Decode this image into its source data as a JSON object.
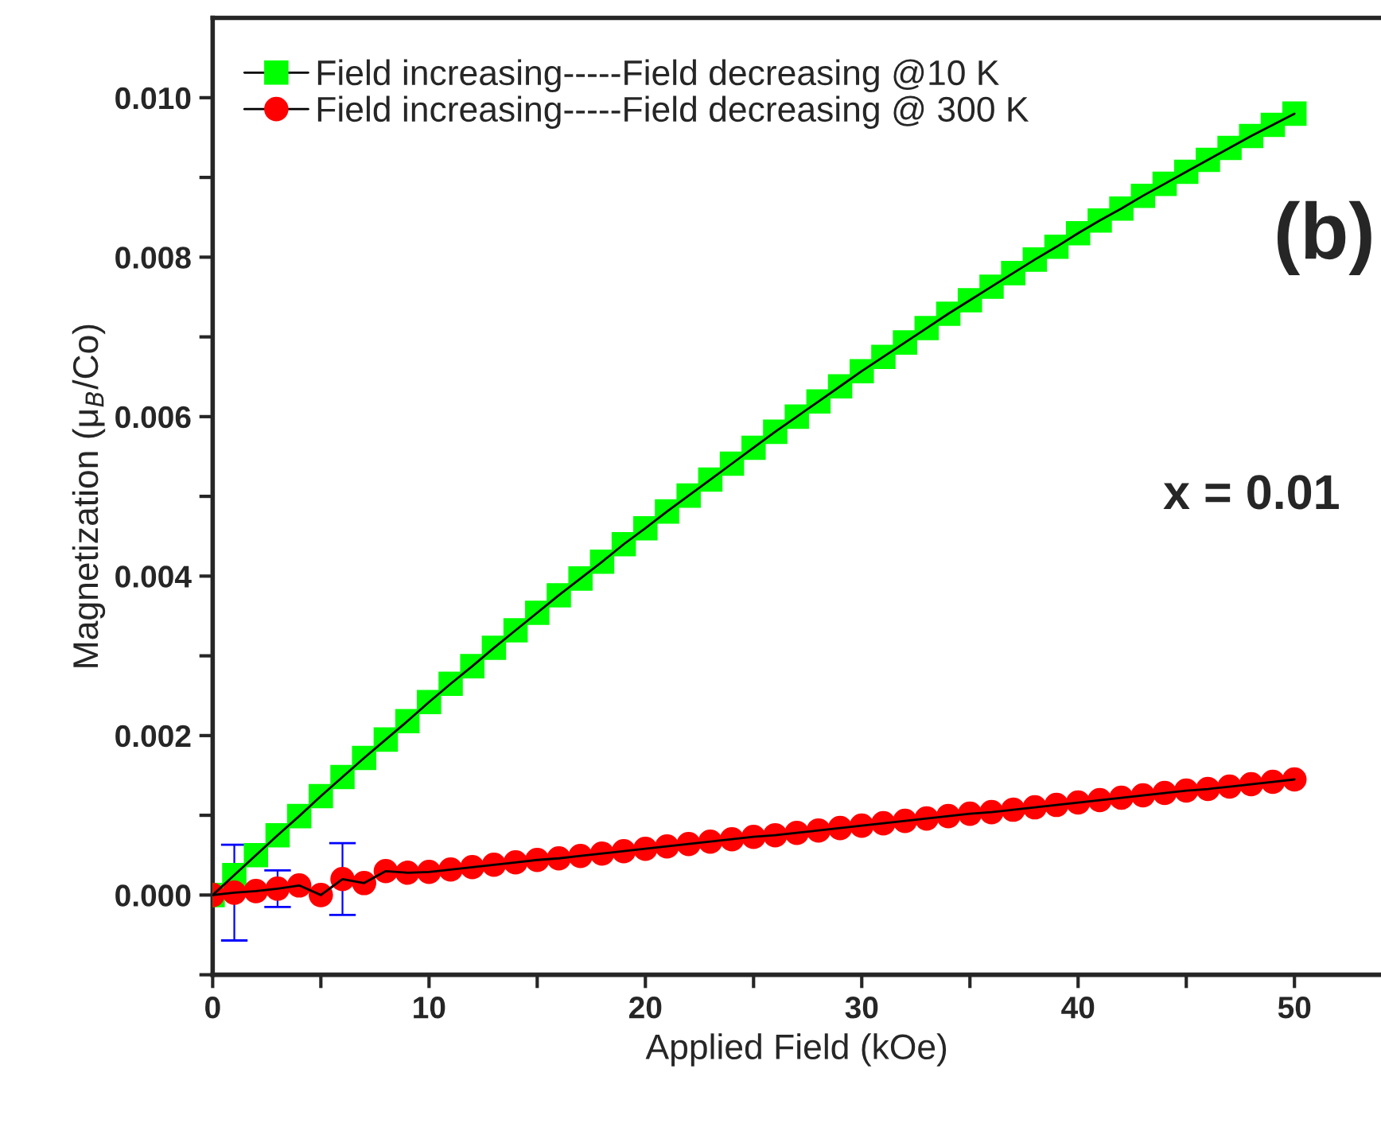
{
  "chart_data": {
    "type": "line",
    "xlabel": "Applied Field (kOe)",
    "ylabel": "Magnetization (μ$_{B}$/Co)",
    "annotations": [
      "(b)",
      "x = 0.01"
    ],
    "xlim": [
      0,
      54
    ],
    "ylim": [
      -0.001,
      0.011
    ],
    "xticks": [
      0,
      {
        "value": 5,
        "label": null
      },
      10,
      {
        "value": 15,
        "label": null
      },
      20,
      {
        "value": 25,
        "label": null
      },
      30,
      {
        "value": 35,
        "label": null
      },
      40,
      {
        "value": 45,
        "label": null
      },
      50
    ],
    "yticks": [
      {
        "value": -0.001,
        "label": null
      },
      {
        "value": 0,
        "label": "0.000"
      },
      {
        "value": 0.001,
        "label": null
      },
      {
        "value": 0.002,
        "label": "0.002"
      },
      {
        "value": 0.003,
        "label": null
      },
      {
        "value": 0.004,
        "label": "0.004"
      },
      {
        "value": 0.005,
        "label": null
      },
      {
        "value": 0.006,
        "label": "0.006"
      },
      {
        "value": 0.007,
        "label": null
      },
      {
        "value": 0.008,
        "label": "0.008"
      },
      {
        "value": 0.009,
        "label": null
      },
      {
        "value": 0.01,
        "label": "0.010"
      }
    ],
    "legend": "top left",
    "grid": false,
    "x": [
      0,
      1,
      2,
      3,
      4,
      5,
      6,
      7,
      8,
      9,
      10,
      11,
      12,
      13,
      14,
      15,
      16,
      17,
      18,
      19,
      20,
      21,
      22,
      23,
      24,
      25,
      26,
      27,
      28,
      29,
      30,
      31,
      32,
      33,
      34,
      35,
      36,
      37,
      38,
      39,
      40,
      41,
      42,
      43,
      44,
      45,
      46,
      47,
      48,
      49,
      50
    ],
    "series": [
      {
        "name": "Field increasing-----Field decreasing @10 K",
        "color": "#00ff00",
        "marker": "square",
        "values": [
          0.0,
          0.00025,
          0.0005,
          0.00075,
          0.00099,
          0.00124,
          0.00148,
          0.00172,
          0.00195,
          0.00218,
          0.00242,
          0.00265,
          0.00287,
          0.0031,
          0.00332,
          0.00354,
          0.00376,
          0.00397,
          0.00418,
          0.0044,
          0.0046,
          0.00481,
          0.00501,
          0.00521,
          0.00541,
          0.00561,
          0.00581,
          0.006,
          0.00619,
          0.00638,
          0.00657,
          0.00675,
          0.00693,
          0.00711,
          0.00729,
          0.00746,
          0.00763,
          0.0078,
          0.00797,
          0.00813,
          0.0083,
          0.00846,
          0.00861,
          0.00877,
          0.00892,
          0.00907,
          0.00922,
          0.00937,
          0.00952,
          0.00966,
          0.0098
        ]
      },
      {
        "name": "Field increasing-----Field decreasing @ 300 K",
        "color": "#ff0000",
        "marker": "circle",
        "values": [
          0.0,
          3e-05,
          5e-05,
          8e-05,
          0.00012,
          0.0,
          0.0002,
          0.00015,
          0.0003,
          0.00028,
          0.00029,
          0.00032,
          0.00035,
          0.00038,
          0.00041,
          0.00044,
          0.00046,
          0.00049,
          0.00052,
          0.00055,
          0.00058,
          0.00061,
          0.00064,
          0.00067,
          0.0007,
          0.00073,
          0.00075,
          0.00078,
          0.00081,
          0.00084,
          0.00087,
          0.0009,
          0.00093,
          0.00096,
          0.00099,
          0.00102,
          0.00104,
          0.00107,
          0.0011,
          0.00113,
          0.00116,
          0.00119,
          0.00122,
          0.00125,
          0.00128,
          0.00131,
          0.00133,
          0.00136,
          0.00139,
          0.00142,
          0.00145
        ],
        "errors": [
          null,
          0.0006,
          null,
          0.00023,
          null,
          null,
          0.00045,
          null,
          null,
          null,
          null,
          null,
          null,
          null,
          null,
          null,
          null,
          null,
          null,
          null,
          null,
          null,
          null,
          null,
          null,
          null,
          null,
          null,
          null,
          null,
          null,
          null,
          null,
          null,
          null,
          null,
          null,
          null,
          null,
          null,
          null,
          null,
          null,
          null,
          null,
          null,
          null,
          null,
          null,
          null,
          null
        ]
      }
    ]
  }
}
